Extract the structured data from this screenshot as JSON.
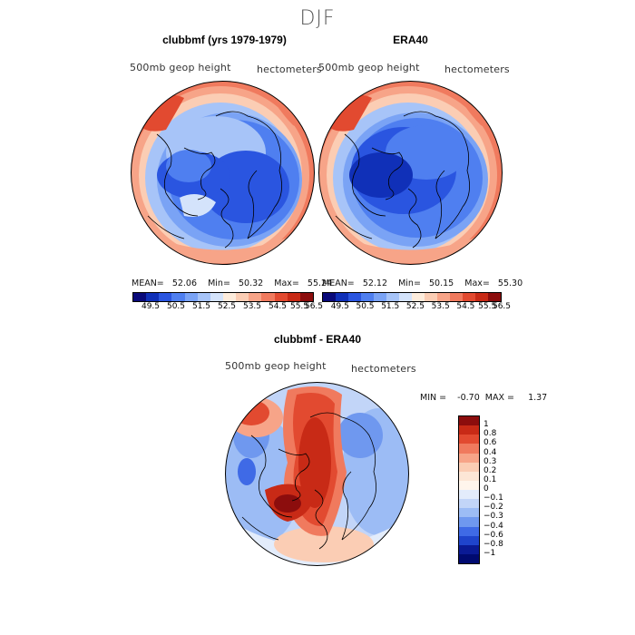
{
  "page_title": "DJF",
  "panels": [
    {
      "title": "clubbmf (yrs 1979-1979)",
      "left_label": "500mb  geop height",
      "right_label": "hectometers",
      "stats": "MEAN=   52.06    Min=   50.32    Max=   55.24"
    },
    {
      "title": "ERA40",
      "left_label": "500mb  geop height",
      "right_label": "hectometers",
      "stats": "MEAN=   52.12    Min=   50.15    Max=   55.30"
    }
  ],
  "top_colorbar": {
    "labels": [
      "49.5",
      "50.5",
      "51.5",
      "52.5",
      "53.5",
      "54.5",
      "55.5",
      "56.5"
    ],
    "colors": [
      "#0a0a7a",
      "#1030b8",
      "#2a55e0",
      "#4f7ff0",
      "#7aa3f5",
      "#a7c4f8",
      "#d4e3fb",
      "#fdecdc",
      "#fbcdb4",
      "#f7a488",
      "#f07a5e",
      "#e24a30",
      "#c82a16",
      "#8c0d0d"
    ]
  },
  "diff_panel": {
    "title": "clubbmf - ERA40",
    "left_label": "500mb  geop height",
    "right_label": "hectometers",
    "stats": "MIN =    -0.70  MAX =     1.37"
  },
  "diff_colorbar": {
    "labels": [
      "1",
      "0.8",
      "0.6",
      "0.4",
      "0.3",
      "0.2",
      "0.1",
      "0",
      "−0.1",
      "−0.2",
      "−0.3",
      "−0.4",
      "−0.6",
      "−0.8",
      "−1"
    ],
    "colors": [
      "#8c0d0d",
      "#c82a16",
      "#e24a30",
      "#f07a5e",
      "#f7a488",
      "#fbcdb4",
      "#fde6d6",
      "#fff5ec",
      "#e3ecfb",
      "#c2d5f8",
      "#9cbcf5",
      "#6f98ef",
      "#3f6ae6",
      "#1f44cc",
      "#0a1a95",
      "#000a70"
    ]
  },
  "colors": {
    "deep_blue": "#1f44cc",
    "mid_blue": "#3f6ae6",
    "light_blue": "#9cbcf5",
    "pale": "#dde8fb",
    "red": "#e24a30",
    "dark_red": "#c82a16",
    "coast": "#000000"
  }
}
